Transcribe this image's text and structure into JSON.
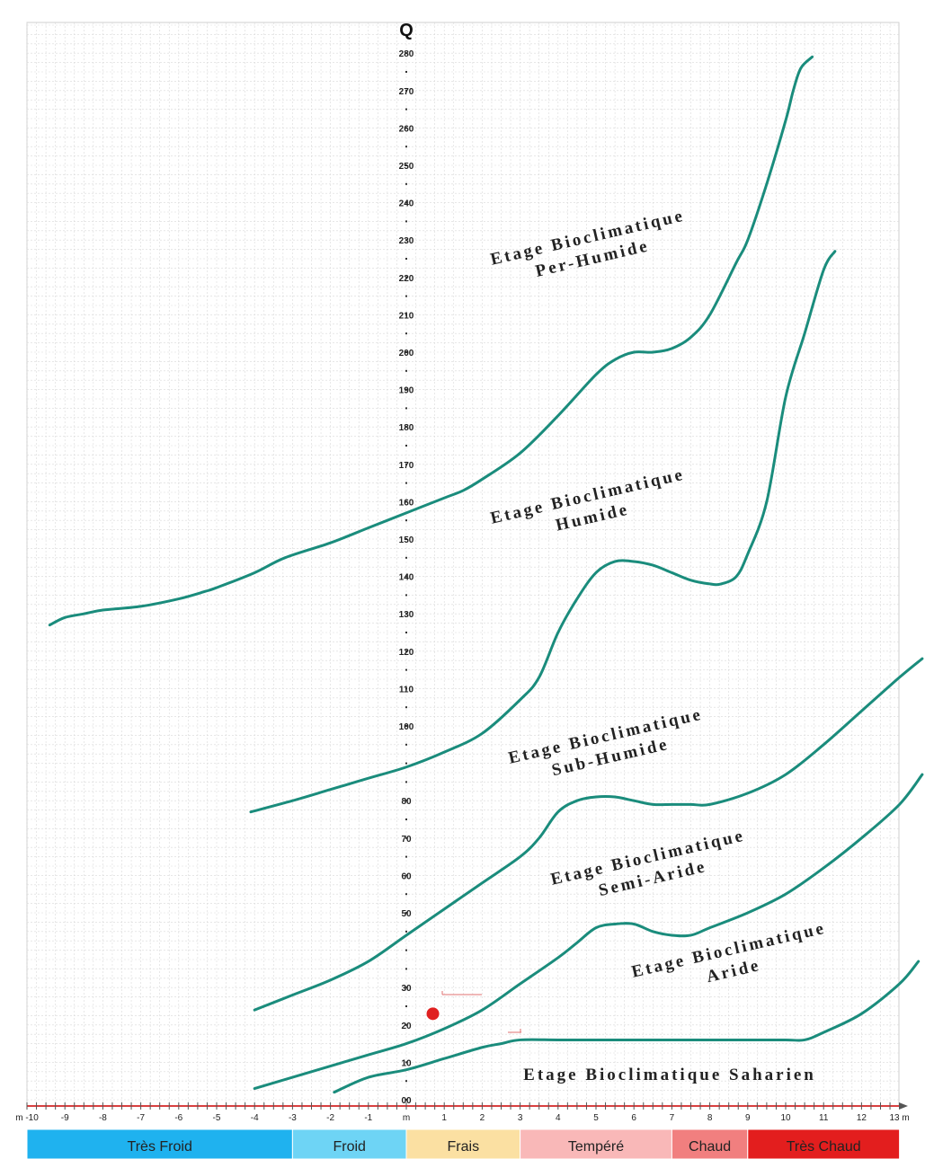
{
  "chart_data": {
    "type": "line",
    "title": "",
    "y_axis_label": "Q",
    "x_axis_unit": "m",
    "xlim": [
      -10,
      13
    ],
    "ylim": [
      0,
      285
    ],
    "y_ticks": [
      {
        "v": 0,
        "label": "00"
      },
      {
        "v": 10,
        "label": "10"
      },
      {
        "v": 20,
        "label": "20"
      },
      {
        "v": 30,
        "label": "30"
      },
      {
        "v": 50,
        "label": "50"
      },
      {
        "v": 60,
        "label": "60"
      },
      {
        "v": 70,
        "label": "70"
      },
      {
        "v": 80,
        "label": "80"
      },
      {
        "v": 100,
        "label": "100"
      },
      {
        "v": 110,
        "label": "110"
      },
      {
        "v": 120,
        "label": "120"
      },
      {
        "v": 130,
        "label": "130"
      },
      {
        "v": 140,
        "label": "140"
      },
      {
        "v": 150,
        "label": "150"
      },
      {
        "v": 160,
        "label": "160"
      },
      {
        "v": 170,
        "label": "170"
      },
      {
        "v": 180,
        "label": "180"
      },
      {
        "v": 190,
        "label": "190"
      },
      {
        "v": 200,
        "label": "200"
      },
      {
        "v": 210,
        "label": "210"
      },
      {
        "v": 220,
        "label": "220"
      },
      {
        "v": 230,
        "label": "230"
      },
      {
        "v": 240,
        "label": "240"
      },
      {
        "v": 250,
        "label": "250"
      },
      {
        "v": 260,
        "label": "260"
      },
      {
        "v": 270,
        "label": "270"
      },
      {
        "v": 280,
        "label": "280"
      }
    ],
    "x_ticks": [
      {
        "v": -10,
        "label": "m -10"
      },
      {
        "v": -9,
        "label": "-9"
      },
      {
        "v": -8,
        "label": "-8"
      },
      {
        "v": -7,
        "label": "-7"
      },
      {
        "v": -6,
        "label": "-6"
      },
      {
        "v": -5,
        "label": "-5"
      },
      {
        "v": -4,
        "label": "-4"
      },
      {
        "v": -3,
        "label": "-3"
      },
      {
        "v": -2,
        "label": "-2"
      },
      {
        "v": -1,
        "label": "-1"
      },
      {
        "v": 0,
        "label": "m"
      },
      {
        "v": 1,
        "label": "1"
      },
      {
        "v": 2,
        "label": "2"
      },
      {
        "v": 3,
        "label": "3"
      },
      {
        "v": 4,
        "label": "4"
      },
      {
        "v": 5,
        "label": "5"
      },
      {
        "v": 6,
        "label": "6"
      },
      {
        "v": 7,
        "label": "7"
      },
      {
        "v": 8,
        "label": "8"
      },
      {
        "v": 9,
        "label": "9"
      },
      {
        "v": 10,
        "label": "10"
      },
      {
        "v": 11,
        "label": "11"
      },
      {
        "v": 12,
        "label": "12"
      },
      {
        "v": 13,
        "label": "13 m"
      }
    ],
    "grid": true,
    "line_color": "#1a8c7c",
    "series": [
      {
        "x": [
          -9.4,
          -9,
          -8.5,
          -8,
          -7,
          -6,
          -5.3,
          -5,
          -4,
          -3.2,
          -2,
          -1,
          0,
          1,
          1.5,
          2,
          3,
          4,
          5,
          5.5,
          6,
          6.5,
          7,
          7.5,
          8,
          8.7,
          9,
          9.5,
          10,
          10.2,
          10.4,
          10.7
        ],
        "y": [
          127,
          129,
          130,
          131,
          132,
          134,
          136,
          137,
          141,
          145,
          149,
          153,
          157,
          161,
          163,
          166,
          173,
          183,
          194,
          198,
          200,
          200,
          201,
          204,
          210,
          224,
          230,
          245,
          262,
          270,
          276,
          279
        ]
      },
      {
        "x": [
          -4.1,
          -3,
          -2,
          -1,
          0,
          1,
          2,
          3,
          3.5,
          4,
          4.5,
          5,
          5.5,
          6,
          6.5,
          7,
          7.5,
          8,
          8.3,
          8.7,
          9,
          9.5,
          10,
          10.5,
          11,
          11.3
        ],
        "y": [
          77,
          80,
          83,
          86,
          89,
          93,
          98,
          107,
          113,
          125,
          134,
          141,
          144,
          144,
          143,
          141,
          139,
          138,
          138,
          140,
          146,
          160,
          188,
          205,
          222,
          227
        ]
      },
      {
        "x": [
          -4,
          -3,
          -2,
          -1,
          0,
          1,
          2,
          3,
          3.5,
          4,
          4.5,
          5,
          5.5,
          6,
          6.5,
          7,
          7.5,
          8,
          9,
          10,
          11,
          12,
          13,
          13.6
        ],
        "y": [
          24,
          28,
          32,
          37,
          44,
          51,
          58,
          65,
          70,
          77,
          80,
          81,
          81,
          80,
          79,
          79,
          79,
          79,
          82,
          87,
          95,
          104,
          113,
          118
        ]
      },
      {
        "x": [
          -4,
          -3,
          -2,
          -1,
          0,
          1,
          2,
          3,
          4,
          4.5,
          5,
          5.5,
          6,
          6.5,
          7,
          7.5,
          8,
          9,
          10,
          11,
          12,
          13,
          13.6
        ],
        "y": [
          3,
          6,
          9,
          12,
          15,
          19,
          24,
          31,
          38,
          42,
          46,
          47,
          47,
          45,
          44,
          44,
          46,
          50,
          55,
          62,
          70,
          79,
          87
        ]
      },
      {
        "x": [
          -1.9,
          -1,
          0,
          1,
          2,
          2.5,
          3,
          4,
          5,
          6,
          7,
          8,
          9,
          10,
          10.5,
          11,
          12,
          13,
          13.5
        ],
        "y": [
          2,
          6,
          8,
          11,
          14,
          15,
          16,
          16,
          16,
          16,
          16,
          16,
          16,
          16,
          16,
          18,
          23,
          31,
          37
        ]
      }
    ],
    "zones": [
      {
        "line1": "Etage  Bioclimatique",
        "line2": "Per-Humide"
      },
      {
        "line1": "Etage  Bioclimatique",
        "line2": "Humide"
      },
      {
        "line1": "Etage  Bioclimatique",
        "line2": "Sub-Humide"
      },
      {
        "line1": "Etage  Bioclimatique",
        "line2": "Semi-Aride"
      },
      {
        "line1": "Etage  Bioclimatique",
        "line2": "Aride"
      },
      {
        "line1": "Etage  Bioclimatique  Saharien",
        "line2": ""
      }
    ],
    "marker": {
      "x": 0.7,
      "y": 23,
      "color": "#e02020"
    },
    "temperature_bands": [
      {
        "label": "Très Froid",
        "from": -10,
        "to": -3,
        "color": "#1fb2ef"
      },
      {
        "label": "Froid",
        "from": -3,
        "to": 0,
        "color": "#6ed4f5"
      },
      {
        "label": "Frais",
        "from": 0,
        "to": 3,
        "color": "#fbe0a2"
      },
      {
        "label": "Tempéré",
        "from": 3,
        "to": 7,
        "color": "#f9b8b8"
      },
      {
        "label": "Chaud",
        "from": 7,
        "to": 9,
        "color": "#f17f7f"
      },
      {
        "label": "Très Chaud",
        "from": 9,
        "to": 13,
        "color": "#e31e1e"
      }
    ]
  }
}
